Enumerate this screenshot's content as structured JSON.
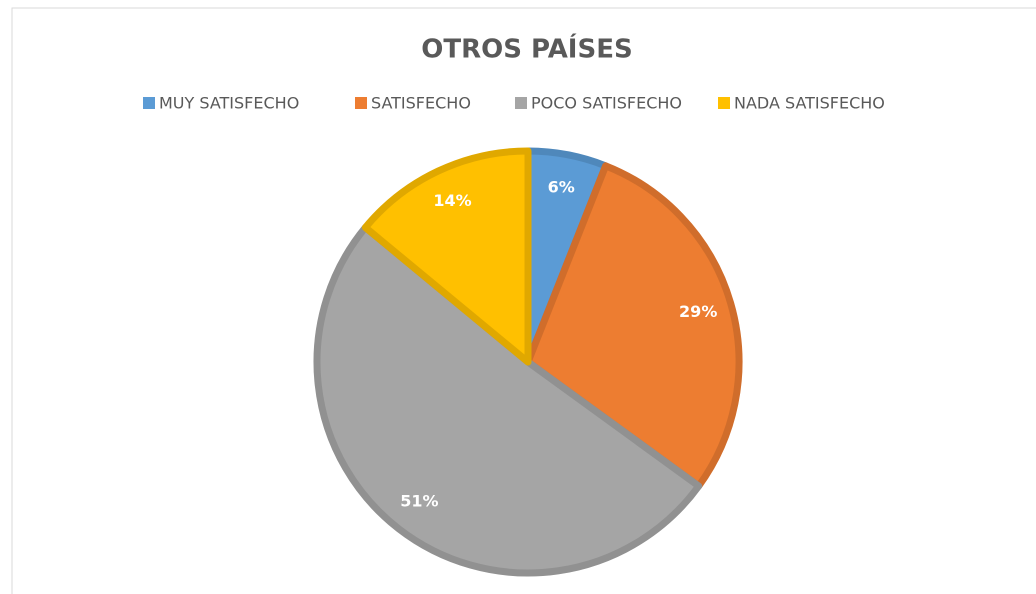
{
  "chart_data": {
    "type": "pie",
    "title": "OTROS PAÍSES",
    "categories": [
      "MUY SATISFECHO",
      "SATISFECHO",
      "POCO SATISFECHO",
      "NADA SATISFECHO"
    ],
    "values": [
      6,
      29,
      51,
      14
    ],
    "value_labels": [
      "6%",
      "29%",
      "51%",
      "14%"
    ],
    "colors": [
      "#5b9bd5",
      "#ed7d31",
      "#a5a5a5",
      "#ffc000"
    ],
    "legend": "top"
  }
}
